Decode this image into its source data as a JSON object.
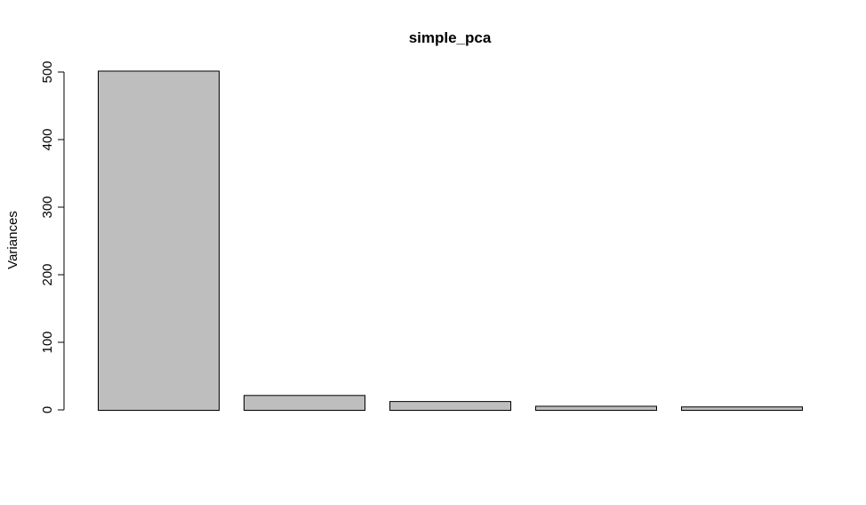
{
  "chart_data": {
    "type": "bar",
    "title": "simple_pca",
    "xlabel": "",
    "ylabel": "Variances",
    "categories": [
      "",
      "",
      "",
      "",
      ""
    ],
    "values": [
      502,
      22,
      13,
      6,
      5
    ],
    "ylim": [
      0,
      500
    ],
    "yticks": [
      "0",
      "100",
      "200",
      "300",
      "400",
      "500"
    ],
    "grid": false,
    "legend": "none",
    "bar_color": "#bebebe",
    "bar_border_color": "#000000"
  }
}
